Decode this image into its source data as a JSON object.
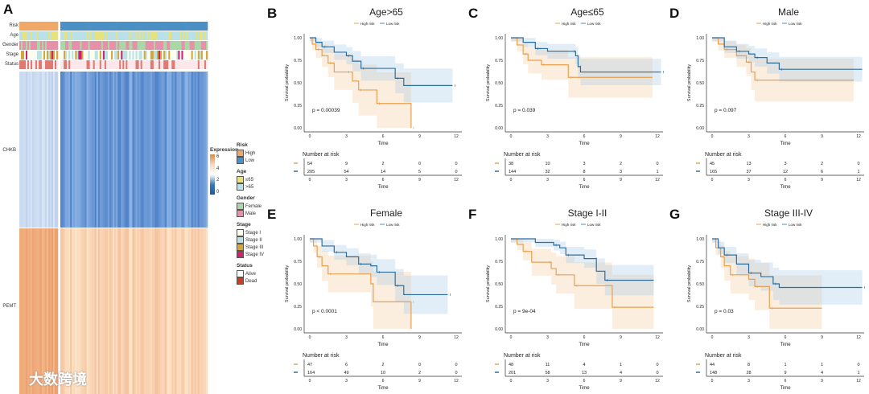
{
  "panel_a": {
    "label": "A",
    "row_labels": [
      "Risk",
      "Age",
      "Gender",
      "Stage",
      "Status"
    ],
    "genes": [
      "CHKB",
      "PEMT"
    ],
    "expression_legend": {
      "title": "Expression",
      "ticks": [
        "6",
        "4",
        "2",
        "0"
      ]
    },
    "legends": [
      {
        "title": "Risk",
        "items": [
          {
            "label": "High",
            "color": "#f0a868"
          },
          {
            "label": "Low",
            "color": "#4a90c4"
          }
        ]
      },
      {
        "title": "Age",
        "items": [
          {
            "label": "≤65",
            "color": "#e6e27c"
          },
          {
            "label": ">65",
            "color": "#b9e1e9"
          }
        ]
      },
      {
        "title": "Gender",
        "items": [
          {
            "label": "Female",
            "color": "#a9d8a6"
          },
          {
            "label": "Male",
            "color": "#e690aa"
          }
        ]
      },
      {
        "title": "Stage",
        "items": [
          {
            "label": "Stage I",
            "color": "#fdfdf0"
          },
          {
            "label": "Stage II",
            "color": "#b8e4e6"
          },
          {
            "label": "Stage III",
            "color": "#d6a63e"
          },
          {
            "label": "Stage IV",
            "color": "#d02070"
          }
        ]
      },
      {
        "title": "Status",
        "items": [
          {
            "label": "Alive",
            "color": "#ffffff"
          },
          {
            "label": "Dead",
            "color": "#c84020"
          }
        ]
      }
    ],
    "high_risk_n": 58,
    "low_risk_n": 185
  },
  "watermark": "大数跨境",
  "chart_data": [
    {
      "panel": "B",
      "type": "line",
      "title": "Age>65",
      "legend": [
        "High risk",
        "Low risk"
      ],
      "xlabel": "Time",
      "ylabel": "Survival probability",
      "xticks": [
        "0",
        "3",
        "6",
        "9",
        "12"
      ],
      "yticks": [
        "0.00",
        "0.25",
        "0.50",
        "0.75",
        "1.00"
      ],
      "xlim": [
        0,
        12
      ],
      "ylim": [
        0,
        1
      ],
      "pvalue": "p = 0.00039",
      "series": [
        {
          "name": "High risk",
          "color": "#e8a050",
          "points": [
            [
              0,
              1
            ],
            [
              0.2,
              0.93
            ],
            [
              0.5,
              0.87
            ],
            [
              1,
              0.8
            ],
            [
              1.5,
              0.72
            ],
            [
              2,
              0.62
            ],
            [
              3,
              0.62
            ],
            [
              3.5,
              0.52
            ],
            [
              4,
              0.42
            ],
            [
              5,
              0.42
            ],
            [
              5.5,
              0.27
            ],
            [
              8.3,
              0.27
            ],
            [
              8.3,
              0
            ]
          ]
        },
        {
          "name": "Low risk",
          "color": "#2e6e9e",
          "points": [
            [
              0,
              1
            ],
            [
              0.5,
              0.95
            ],
            [
              1,
              0.9
            ],
            [
              2,
              0.84
            ],
            [
              3,
              0.8
            ],
            [
              3.5,
              0.74
            ],
            [
              4.2,
              0.66
            ],
            [
              6.7,
              0.66
            ],
            [
              7,
              0.55
            ],
            [
              7.7,
              0.47
            ],
            [
              11.7,
              0.47
            ]
          ]
        }
      ],
      "risk_table": {
        "title": "Number at risk",
        "high": [
          "54",
          "9",
          "2",
          "0",
          "0"
        ],
        "low": [
          "205",
          "54",
          "14",
          "5",
          "0"
        ]
      }
    },
    {
      "panel": "C",
      "type": "line",
      "title": "Age≤65",
      "legend": [
        "High risk",
        "Low risk"
      ],
      "xlabel": "Time",
      "ylabel": "Survival probability",
      "xticks": [
        "0",
        "3",
        "6",
        "9",
        "12"
      ],
      "yticks": [
        "0.00",
        "0.25",
        "0.50",
        "0.75",
        "1.00"
      ],
      "xlim": [
        0,
        12
      ],
      "ylim": [
        0,
        1
      ],
      "pvalue": "p = 0.039",
      "series": [
        {
          "name": "High risk",
          "color": "#e8a050",
          "points": [
            [
              0,
              1
            ],
            [
              0.5,
              0.92
            ],
            [
              1,
              0.82
            ],
            [
              1.4,
              0.75
            ],
            [
              2.5,
              0.7
            ],
            [
              4.7,
              0.7
            ],
            [
              4.7,
              0.56
            ],
            [
              11.6,
              0.56
            ]
          ]
        },
        {
          "name": "Low risk",
          "color": "#2e6e9e",
          "points": [
            [
              0,
              1
            ],
            [
              1,
              0.95
            ],
            [
              2,
              0.88
            ],
            [
              3,
              0.85
            ],
            [
              5,
              0.85
            ],
            [
              5.3,
              0.8
            ],
            [
              5.5,
              0.68
            ],
            [
              5.7,
              0.62
            ],
            [
              12.3,
              0.62
            ]
          ]
        }
      ],
      "risk_table": {
        "title": "Number at risk",
        "high": [
          "38",
          "10",
          "3",
          "2",
          "0"
        ],
        "low": [
          "144",
          "32",
          "8",
          "3",
          "1"
        ]
      }
    },
    {
      "panel": "D",
      "type": "line",
      "title": "Male",
      "legend": [
        "High risk",
        "Low risk"
      ],
      "xlabel": "Time",
      "ylabel": "Survival probability",
      "xticks": [
        "0",
        "3",
        "6",
        "9",
        "12"
      ],
      "yticks": [
        "0.00",
        "0.25",
        "0.50",
        "0.75",
        "1.00"
      ],
      "xlim": [
        0,
        12
      ],
      "ylim": [
        0,
        1
      ],
      "pvalue": "p = 0.097",
      "series": [
        {
          "name": "High risk",
          "color": "#e8a050",
          "points": [
            [
              0,
              1
            ],
            [
              0.5,
              0.93
            ],
            [
              1,
              0.87
            ],
            [
              2,
              0.8
            ],
            [
              2.8,
              0.73
            ],
            [
              3.2,
              0.62
            ],
            [
              3.5,
              0.53
            ],
            [
              11.6,
              0.53
            ]
          ]
        },
        {
          "name": "Low risk",
          "color": "#2e6e9e",
          "points": [
            [
              0,
              1
            ],
            [
              1,
              0.9
            ],
            [
              2,
              0.85
            ],
            [
              3,
              0.82
            ],
            [
              3.5,
              0.78
            ],
            [
              4.5,
              0.72
            ],
            [
              5.5,
              0.65
            ],
            [
              12.3,
              0.65
            ]
          ]
        }
      ],
      "risk_table": {
        "title": "Number at risk",
        "high": [
          "45",
          "13",
          "3",
          "2",
          "0"
        ],
        "low": [
          "165",
          "37",
          "12",
          "6",
          "1"
        ]
      }
    },
    {
      "panel": "E",
      "type": "line",
      "title": "Female",
      "legend": [
        "High risk",
        "Low risk"
      ],
      "xlabel": "Time",
      "ylabel": "Survival probability",
      "xticks": [
        "0",
        "3",
        "6",
        "9",
        "12"
      ],
      "yticks": [
        "0.00",
        "0.25",
        "0.50",
        "0.75",
        "1.00"
      ],
      "xlim": [
        0,
        12
      ],
      "ylim": [
        0,
        1
      ],
      "pvalue": "p < 0.0001",
      "series": [
        {
          "name": "High risk",
          "color": "#e8a050",
          "points": [
            [
              0,
              1
            ],
            [
              0.3,
              0.92
            ],
            [
              0.6,
              0.8
            ],
            [
              1,
              0.7
            ],
            [
              1.5,
              0.61
            ],
            [
              4.7,
              0.61
            ],
            [
              5,
              0.5
            ],
            [
              5.2,
              0.3
            ],
            [
              8.3,
              0.3
            ],
            [
              8.3,
              0
            ]
          ]
        },
        {
          "name": "Low risk",
          "color": "#2e6e9e",
          "points": [
            [
              0,
              1
            ],
            [
              1,
              0.92
            ],
            [
              2,
              0.85
            ],
            [
              3,
              0.8
            ],
            [
              4,
              0.72
            ],
            [
              5,
              0.7
            ],
            [
              5.5,
              0.63
            ],
            [
              6.8,
              0.63
            ],
            [
              7,
              0.48
            ],
            [
              7.7,
              0.38
            ],
            [
              11.3,
              0.38
            ]
          ]
        }
      ],
      "risk_table": {
        "title": "Number at risk",
        "high": [
          "47",
          "6",
          "2",
          "0",
          "0"
        ],
        "low": [
          "164",
          "49",
          "10",
          "2",
          "0"
        ]
      }
    },
    {
      "panel": "F",
      "type": "line",
      "title": "Stage I-II",
      "legend": [
        "High risk",
        "Low risk"
      ],
      "xlabel": "Time",
      "ylabel": "Survival probability",
      "xticks": [
        "0",
        "3",
        "6",
        "9",
        "12"
      ],
      "yticks": [
        "0.00",
        "0.25",
        "0.50",
        "0.75",
        "1.00"
      ],
      "xlim": [
        0,
        12
      ],
      "ylim": [
        0,
        1
      ],
      "pvalue": "p = 9e-04",
      "series": [
        {
          "name": "High risk",
          "color": "#e8a050",
          "points": [
            [
              0,
              1
            ],
            [
              0.5,
              0.94
            ],
            [
              1,
              0.86
            ],
            [
              1.7,
              0.74
            ],
            [
              3,
              0.74
            ],
            [
              3.3,
              0.67
            ],
            [
              3.7,
              0.6
            ],
            [
              4.7,
              0.6
            ],
            [
              5.2,
              0.48
            ],
            [
              8.3,
              0.48
            ],
            [
              8.3,
              0.24
            ],
            [
              11.7,
              0.24
            ]
          ]
        },
        {
          "name": "Low risk",
          "color": "#2e6e9e",
          "points": [
            [
              0,
              1
            ],
            [
              2,
              0.96
            ],
            [
              3.5,
              0.93
            ],
            [
              4,
              0.9
            ],
            [
              4.5,
              0.82
            ],
            [
              6,
              0.78
            ],
            [
              6.8,
              0.78
            ],
            [
              7,
              0.64
            ],
            [
              7.7,
              0.54
            ],
            [
              11.7,
              0.54
            ]
          ]
        }
      ],
      "risk_table": {
        "title": "Number at risk",
        "high": [
          "48",
          "11",
          "4",
          "1",
          "0"
        ],
        "low": [
          "201",
          "58",
          "13",
          "4",
          "0"
        ]
      }
    },
    {
      "panel": "G",
      "type": "line",
      "title": "Stage III-IV",
      "legend": [
        "High risk",
        "Low risk"
      ],
      "xlabel": "Time",
      "ylabel": "Survival probability",
      "xticks": [
        "0",
        "3",
        "6",
        "9",
        "12"
      ],
      "yticks": [
        "0.00",
        "0.25",
        "0.50",
        "0.75",
        "1.00"
      ],
      "xlim": [
        0,
        12
      ],
      "ylim": [
        0,
        1
      ],
      "pvalue": "p = 0.03",
      "series": [
        {
          "name": "High risk",
          "color": "#e8a050",
          "points": [
            [
              0,
              1
            ],
            [
              0.3,
              0.9
            ],
            [
              0.7,
              0.8
            ],
            [
              1,
              0.7
            ],
            [
              1.5,
              0.6
            ],
            [
              3,
              0.55
            ],
            [
              3.5,
              0.47
            ],
            [
              4.5,
              0.47
            ],
            [
              4.7,
              0.23
            ],
            [
              9,
              0.23
            ]
          ]
        },
        {
          "name": "Low risk",
          "color": "#2e6e9e",
          "points": [
            [
              0,
              1
            ],
            [
              0.5,
              0.9
            ],
            [
              1,
              0.82
            ],
            [
              2,
              0.72
            ],
            [
              3,
              0.62
            ],
            [
              4,
              0.58
            ],
            [
              5,
              0.5
            ],
            [
              5.5,
              0.46
            ],
            [
              12.3,
              0.46
            ]
          ]
        }
      ],
      "risk_table": {
        "title": "Number at risk",
        "high": [
          "44",
          "8",
          "1",
          "1",
          "0"
        ],
        "low": [
          "148",
          "28",
          "9",
          "4",
          "1"
        ]
      }
    }
  ]
}
